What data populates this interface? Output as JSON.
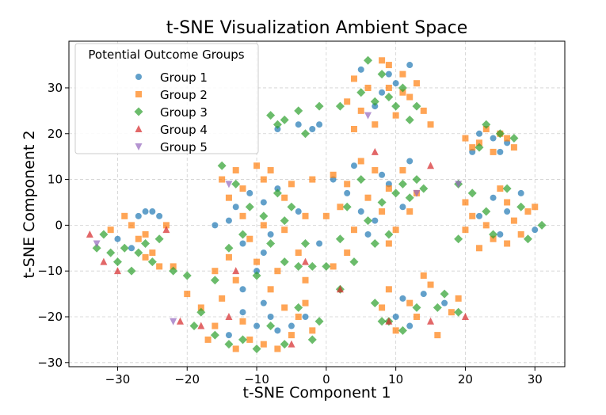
{
  "chart_data": {
    "type": "scatter",
    "title": "t-SNE Visualization Ambient Space",
    "xlabel": "t-SNE Component 1",
    "ylabel": "t-SNE Component 2",
    "xlim": [
      -37,
      34.3
    ],
    "ylim": [
      -30.9,
      40.2
    ],
    "xticks": [
      -30,
      -20,
      -10,
      0,
      10,
      20,
      30
    ],
    "yticks": [
      -30,
      -20,
      -10,
      0,
      10,
      20,
      30
    ],
    "grid": true,
    "legend": {
      "title": "Potential Outcome Groups",
      "placement": "top-left"
    },
    "series": [
      {
        "name": "Group 1",
        "marker": "circle",
        "color": "#1f77b4",
        "points": [
          [
            8,
            29
          ],
          [
            12,
            35
          ],
          [
            5,
            34
          ],
          [
            10,
            31
          ],
          [
            7,
            26
          ],
          [
            9,
            33
          ],
          [
            -2,
            21
          ],
          [
            -1,
            22
          ],
          [
            -4,
            22
          ],
          [
            -7,
            21
          ],
          [
            21,
            16
          ],
          [
            24,
            19
          ],
          [
            25,
            16
          ],
          [
            26,
            18
          ],
          [
            22,
            20
          ],
          [
            -27,
            2
          ],
          [
            -26,
            3
          ],
          [
            -25,
            3
          ],
          [
            -30,
            -3
          ],
          [
            -28,
            -5
          ],
          [
            -24,
            2
          ],
          [
            -11,
            7
          ],
          [
            -9,
            5
          ],
          [
            -14,
            1
          ],
          [
            -8,
            -2
          ],
          [
            -12,
            -4
          ],
          [
            -10,
            -10
          ],
          [
            -16,
            0
          ],
          [
            -13,
            4
          ],
          [
            -7,
            8
          ],
          [
            -4,
            3
          ],
          [
            -1,
            -4
          ],
          [
            -12,
            -14
          ],
          [
            -9,
            -6
          ],
          [
            5,
            3
          ],
          [
            7,
            1
          ],
          [
            3,
            7
          ],
          [
            9,
            9
          ],
          [
            6,
            -2
          ],
          [
            11,
            4
          ],
          [
            4,
            13
          ],
          [
            8,
            11
          ],
          [
            1,
            10
          ],
          [
            12,
            14
          ],
          [
            24,
            6
          ],
          [
            26,
            3
          ],
          [
            28,
            7
          ],
          [
            22,
            2
          ],
          [
            25,
            -2
          ],
          [
            30,
            -1
          ],
          [
            -9,
            -17
          ],
          [
            -12,
            -19
          ],
          [
            -7,
            -23
          ],
          [
            -10,
            -22
          ],
          [
            -14,
            -24
          ],
          [
            -5,
            -22
          ],
          [
            -8,
            -20
          ],
          [
            -3,
            -20
          ],
          [
            11,
            -16
          ],
          [
            14,
            -15
          ],
          [
            10,
            -20
          ],
          [
            17,
            -17
          ],
          [
            12,
            -22
          ]
        ]
      },
      {
        "name": "Group 2",
        "marker": "square",
        "color": "#ff7f0e",
        "points": [
          [
            4,
            32
          ],
          [
            6,
            30
          ],
          [
            9,
            35
          ],
          [
            11,
            33
          ],
          [
            13,
            31
          ],
          [
            7,
            22
          ],
          [
            10,
            24
          ],
          [
            14,
            25
          ],
          [
            3,
            27
          ],
          [
            5,
            25
          ],
          [
            12,
            28
          ],
          [
            9,
            30
          ],
          [
            8,
            36
          ],
          [
            11,
            29
          ],
          [
            15,
            22
          ],
          [
            4,
            21
          ],
          [
            20,
            19
          ],
          [
            22,
            18
          ],
          [
            23,
            21
          ],
          [
            25,
            20
          ],
          [
            27,
            17
          ],
          [
            21,
            17
          ],
          [
            24,
            16
          ],
          [
            26,
            19
          ],
          [
            -31,
            -1
          ],
          [
            -29,
            2
          ],
          [
            -27,
            -3
          ],
          [
            -25,
            -6
          ],
          [
            -23,
            0
          ],
          [
            -22,
            -9
          ],
          [
            -24,
            -9
          ],
          [
            -26,
            -2
          ],
          [
            -28,
            0
          ],
          [
            -26,
            -7
          ],
          [
            -15,
            10
          ],
          [
            -13,
            12
          ],
          [
            -10,
            13
          ],
          [
            -8,
            12
          ],
          [
            -12,
            8
          ],
          [
            -9,
            10
          ],
          [
            -14,
            6
          ],
          [
            -6,
            6
          ],
          [
            -5,
            9
          ],
          [
            -3,
            2
          ],
          [
            -6,
            -1
          ],
          [
            -11,
            -3
          ],
          [
            -14,
            -7
          ],
          [
            -10,
            -8
          ],
          [
            -7,
            -10
          ],
          [
            -4,
            -6
          ],
          [
            -13,
            -12
          ],
          [
            -8,
            -14
          ],
          [
            -16,
            -10
          ],
          [
            -3,
            -12
          ],
          [
            -2,
            10
          ],
          [
            -9,
            0
          ],
          [
            -12,
            2
          ],
          [
            1,
            11
          ],
          [
            3,
            9
          ],
          [
            5,
            14
          ],
          [
            7,
            12
          ],
          [
            9,
            8
          ],
          [
            11,
            12
          ],
          [
            13,
            7
          ],
          [
            2,
            4
          ],
          [
            4,
            -1
          ],
          [
            8,
            3
          ],
          [
            10,
            -1
          ],
          [
            6,
            6
          ],
          [
            1,
            -9
          ],
          [
            3,
            -6
          ],
          [
            9,
            -4
          ],
          [
            12,
            3
          ],
          [
            0,
            2
          ],
          [
            20,
            5
          ],
          [
            21,
            2
          ],
          [
            23,
            0
          ],
          [
            24,
            -3
          ],
          [
            26,
            -4
          ],
          [
            27,
            1
          ],
          [
            29,
            3
          ],
          [
            28,
            -2
          ],
          [
            25,
            8
          ],
          [
            22,
            -5
          ],
          [
            30,
            4
          ],
          [
            20,
            -1
          ],
          [
            26,
            5
          ],
          [
            -20,
            -15
          ],
          [
            -18,
            -18
          ],
          [
            -16,
            -22
          ],
          [
            -13,
            -27
          ],
          [
            -11,
            -25
          ],
          [
            -9,
            -26
          ],
          [
            -7,
            -27
          ],
          [
            -5,
            -24
          ],
          [
            -4,
            -20
          ],
          [
            -2,
            -23
          ],
          [
            -15,
            -16
          ],
          [
            -6,
            -18
          ],
          [
            -17,
            -25
          ],
          [
            -12,
            -21
          ],
          [
            -3,
            -17
          ],
          [
            8,
            -18
          ],
          [
            10,
            -23
          ],
          [
            13,
            -20
          ],
          [
            15,
            -13
          ],
          [
            18,
            -19
          ],
          [
            16,
            -24
          ],
          [
            19,
            -16
          ],
          [
            14,
            -11
          ],
          [
            9,
            -14
          ],
          [
            12,
            -17
          ]
        ]
      },
      {
        "name": "Group 3",
        "marker": "diamond",
        "color": "#2ca02c",
        "points": [
          [
            6,
            36
          ],
          [
            9,
            28
          ],
          [
            11,
            30
          ],
          [
            8,
            33
          ],
          [
            13,
            26
          ],
          [
            5,
            29
          ],
          [
            7,
            27
          ],
          [
            10,
            26
          ],
          [
            12,
            23
          ],
          [
            2,
            26
          ],
          [
            -8,
            24
          ],
          [
            -7,
            22
          ],
          [
            -6,
            23
          ],
          [
            -4,
            25
          ],
          [
            -3,
            20
          ],
          [
            -1,
            26
          ],
          [
            23,
            22
          ],
          [
            25,
            20
          ],
          [
            27,
            19
          ],
          [
            22,
            17
          ],
          [
            -33,
            -5
          ],
          [
            -31,
            -6
          ],
          [
            -30,
            -8
          ],
          [
            -29,
            -5
          ],
          [
            -32,
            -2
          ],
          [
            -28,
            -10
          ],
          [
            -27,
            -6
          ],
          [
            -25,
            -8
          ],
          [
            -24,
            -3
          ],
          [
            -22,
            -10
          ],
          [
            -20,
            -11
          ],
          [
            -26,
            -4
          ],
          [
            -15,
            13
          ],
          [
            -13,
            9
          ],
          [
            -11,
            4
          ],
          [
            -9,
            2
          ],
          [
            -7,
            7
          ],
          [
            -5,
            4
          ],
          [
            -8,
            -4
          ],
          [
            -12,
            -2
          ],
          [
            -14,
            -5
          ],
          [
            -10,
            -11
          ],
          [
            -6,
            -8
          ],
          [
            -4,
            -9
          ],
          [
            -2,
            -9
          ],
          [
            -16,
            -12
          ],
          [
            -3,
            -4
          ],
          [
            -6,
            1
          ],
          [
            3,
            4
          ],
          [
            5,
            10
          ],
          [
            7,
            -4
          ],
          [
            9,
            -2
          ],
          [
            11,
            9
          ],
          [
            13,
            10
          ],
          [
            2,
            -3
          ],
          [
            0,
            -9
          ],
          [
            4,
            -8
          ],
          [
            6,
            1
          ],
          [
            8,
            5
          ],
          [
            10,
            7
          ],
          [
            12,
            6
          ],
          [
            14,
            8
          ],
          [
            2,
            -14
          ],
          [
            19,
            9
          ],
          [
            21,
            7
          ],
          [
            23,
            3
          ],
          [
            26,
            8
          ],
          [
            28,
            4
          ],
          [
            31,
            0
          ],
          [
            19,
            -3
          ],
          [
            24,
            -2
          ],
          [
            29,
            -3
          ],
          [
            -19,
            -22
          ],
          [
            -16,
            -24
          ],
          [
            -14,
            -26
          ],
          [
            -12,
            -25
          ],
          [
            -10,
            -27
          ],
          [
            -8,
            -22
          ],
          [
            -6,
            -26
          ],
          [
            -4,
            -18
          ],
          [
            -2,
            -25
          ],
          [
            -18,
            -19
          ],
          [
            -1,
            -21
          ],
          [
            7,
            -17
          ],
          [
            9,
            -21
          ],
          [
            11,
            -23
          ],
          [
            13,
            -18
          ],
          [
            16,
            -18
          ],
          [
            17,
            -15
          ],
          [
            19,
            -19
          ],
          [
            8,
            -21
          ]
        ]
      },
      {
        "name": "Group 4",
        "marker": "triangle-up",
        "color": "#d62728",
        "points": [
          [
            -34,
            -2
          ],
          [
            -32,
            -8
          ],
          [
            -30,
            -10
          ],
          [
            -23,
            -1
          ],
          [
            -21,
            -21
          ],
          [
            -18,
            -22
          ],
          [
            -14,
            -20
          ],
          [
            -5,
            -26
          ],
          [
            7,
            16
          ],
          [
            15,
            13
          ],
          [
            2,
            -14
          ],
          [
            9,
            -21
          ],
          [
            15,
            -21
          ],
          [
            20,
            -20
          ],
          [
            -13,
            -10
          ],
          [
            -3,
            -8
          ]
        ]
      },
      {
        "name": "Group 5",
        "marker": "triangle-down",
        "color": "#9467bd",
        "points": [
          [
            -33,
            -4
          ],
          [
            -22,
            -21
          ],
          [
            6,
            24
          ],
          [
            13,
            7
          ],
          [
            19,
            9
          ],
          [
            -14,
            9
          ]
        ]
      }
    ]
  }
}
